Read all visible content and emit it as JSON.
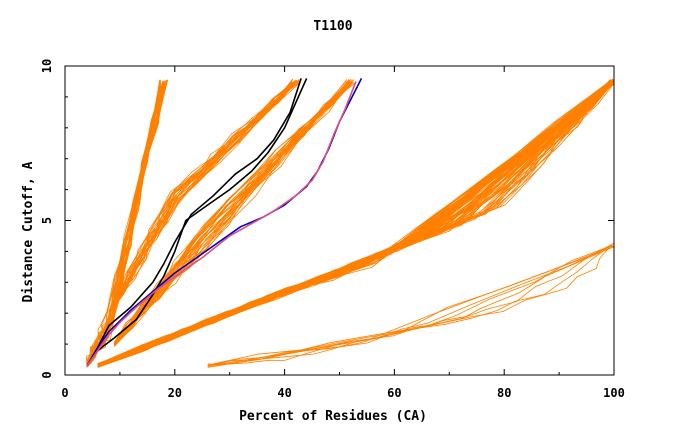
{
  "chart_data": {
    "type": "line",
    "title": "T1100",
    "xlabel": "Percent of Residues (CA)",
    "ylabel": "Distance Cutoff, A",
    "xlim": [
      0,
      100
    ],
    "ylim": [
      0,
      10
    ],
    "x_ticks": [
      0,
      20,
      40,
      60,
      80,
      100
    ],
    "y_ticks": [
      0,
      5,
      10
    ],
    "grid": false,
    "legend": "none",
    "colors": {
      "models": "#ff8000",
      "highlight_blue": "#0000cc",
      "highlight_black": "#000000",
      "highlight_pink": "#e0507a"
    },
    "bundles": [
      {
        "kind": "fan",
        "count": 30,
        "low": [
          [
            4,
            0.3
          ],
          [
            8,
            1.2
          ]
        ],
        "high": [
          [
            8,
            2.0
          ],
          [
            18,
            9.5
          ]
        ],
        "color": "#ff8000"
      },
      {
        "kind": "fan",
        "count": 25,
        "low": [
          [
            8,
            2.0
          ],
          [
            20,
            6.0
          ]
        ],
        "high": [
          [
            20,
            5.5
          ],
          [
            42,
            9.5
          ]
        ],
        "color": "#ff8000"
      },
      {
        "kind": "fan",
        "count": 30,
        "low": [
          [
            9,
            1.0
          ],
          [
            25,
            4.0
          ]
        ],
        "high": [
          [
            26,
            5.0
          ],
          [
            52,
            9.5
          ]
        ],
        "color": "#ff8000"
      },
      {
        "kind": "fan",
        "count": 90,
        "low": [
          [
            6,
            0.3
          ],
          [
            30,
            2.0
          ],
          [
            55,
            3.5
          ]
        ],
        "high": [
          [
            80,
            5.5
          ],
          [
            100,
            9.5
          ]
        ],
        "color": "#ff8000"
      },
      {
        "kind": "fan",
        "count": 8,
        "low": [
          [
            26,
            0.3
          ],
          [
            40,
            0.5
          ],
          [
            55,
            1.2
          ]
        ],
        "high": [
          [
            75,
            1.9
          ],
          [
            92,
            2.8
          ],
          [
            100,
            4.2
          ]
        ],
        "color": "#ff8000"
      }
    ],
    "series": [
      {
        "color": "#000000",
        "x": [
          4,
          6,
          9,
          13,
          16,
          18,
          20,
          22,
          26,
          30,
          34,
          37,
          40,
          42,
          44
        ],
        "y": [
          0.3,
          0.8,
          1.2,
          1.8,
          2.6,
          3.2,
          4.0,
          5.0,
          5.5,
          6.0,
          6.6,
          7.2,
          8.0,
          8.8,
          9.6
        ]
      },
      {
        "color": "#000000",
        "x": [
          4,
          6,
          8,
          12,
          16,
          18,
          20,
          23,
          27,
          31,
          35,
          38,
          41,
          43
        ],
        "y": [
          0.3,
          0.9,
          1.6,
          2.2,
          3.0,
          3.6,
          4.3,
          5.2,
          5.8,
          6.5,
          7.0,
          7.6,
          8.5,
          9.6
        ]
      },
      {
        "color": "#0000cc",
        "x": [
          4,
          6,
          8,
          12,
          16,
          20,
          24,
          28,
          32,
          36,
          40,
          44,
          46,
          48,
          50,
          52,
          54
        ],
        "y": [
          0.3,
          0.9,
          1.4,
          2.1,
          2.7,
          3.3,
          3.8,
          4.3,
          4.8,
          5.1,
          5.5,
          6.1,
          6.6,
          7.3,
          8.2,
          8.9,
          9.6
        ]
      },
      {
        "color": "#e0507a",
        "x": [
          4,
          6,
          8,
          10,
          13,
          17,
          21,
          25,
          30,
          34,
          38,
          42,
          45,
          47,
          49,
          51,
          53
        ],
        "y": [
          0.3,
          0.8,
          1.3,
          1.7,
          2.2,
          2.8,
          3.3,
          3.8,
          4.5,
          4.9,
          5.3,
          5.8,
          6.3,
          6.9,
          7.8,
          8.6,
          9.5
        ]
      }
    ]
  }
}
